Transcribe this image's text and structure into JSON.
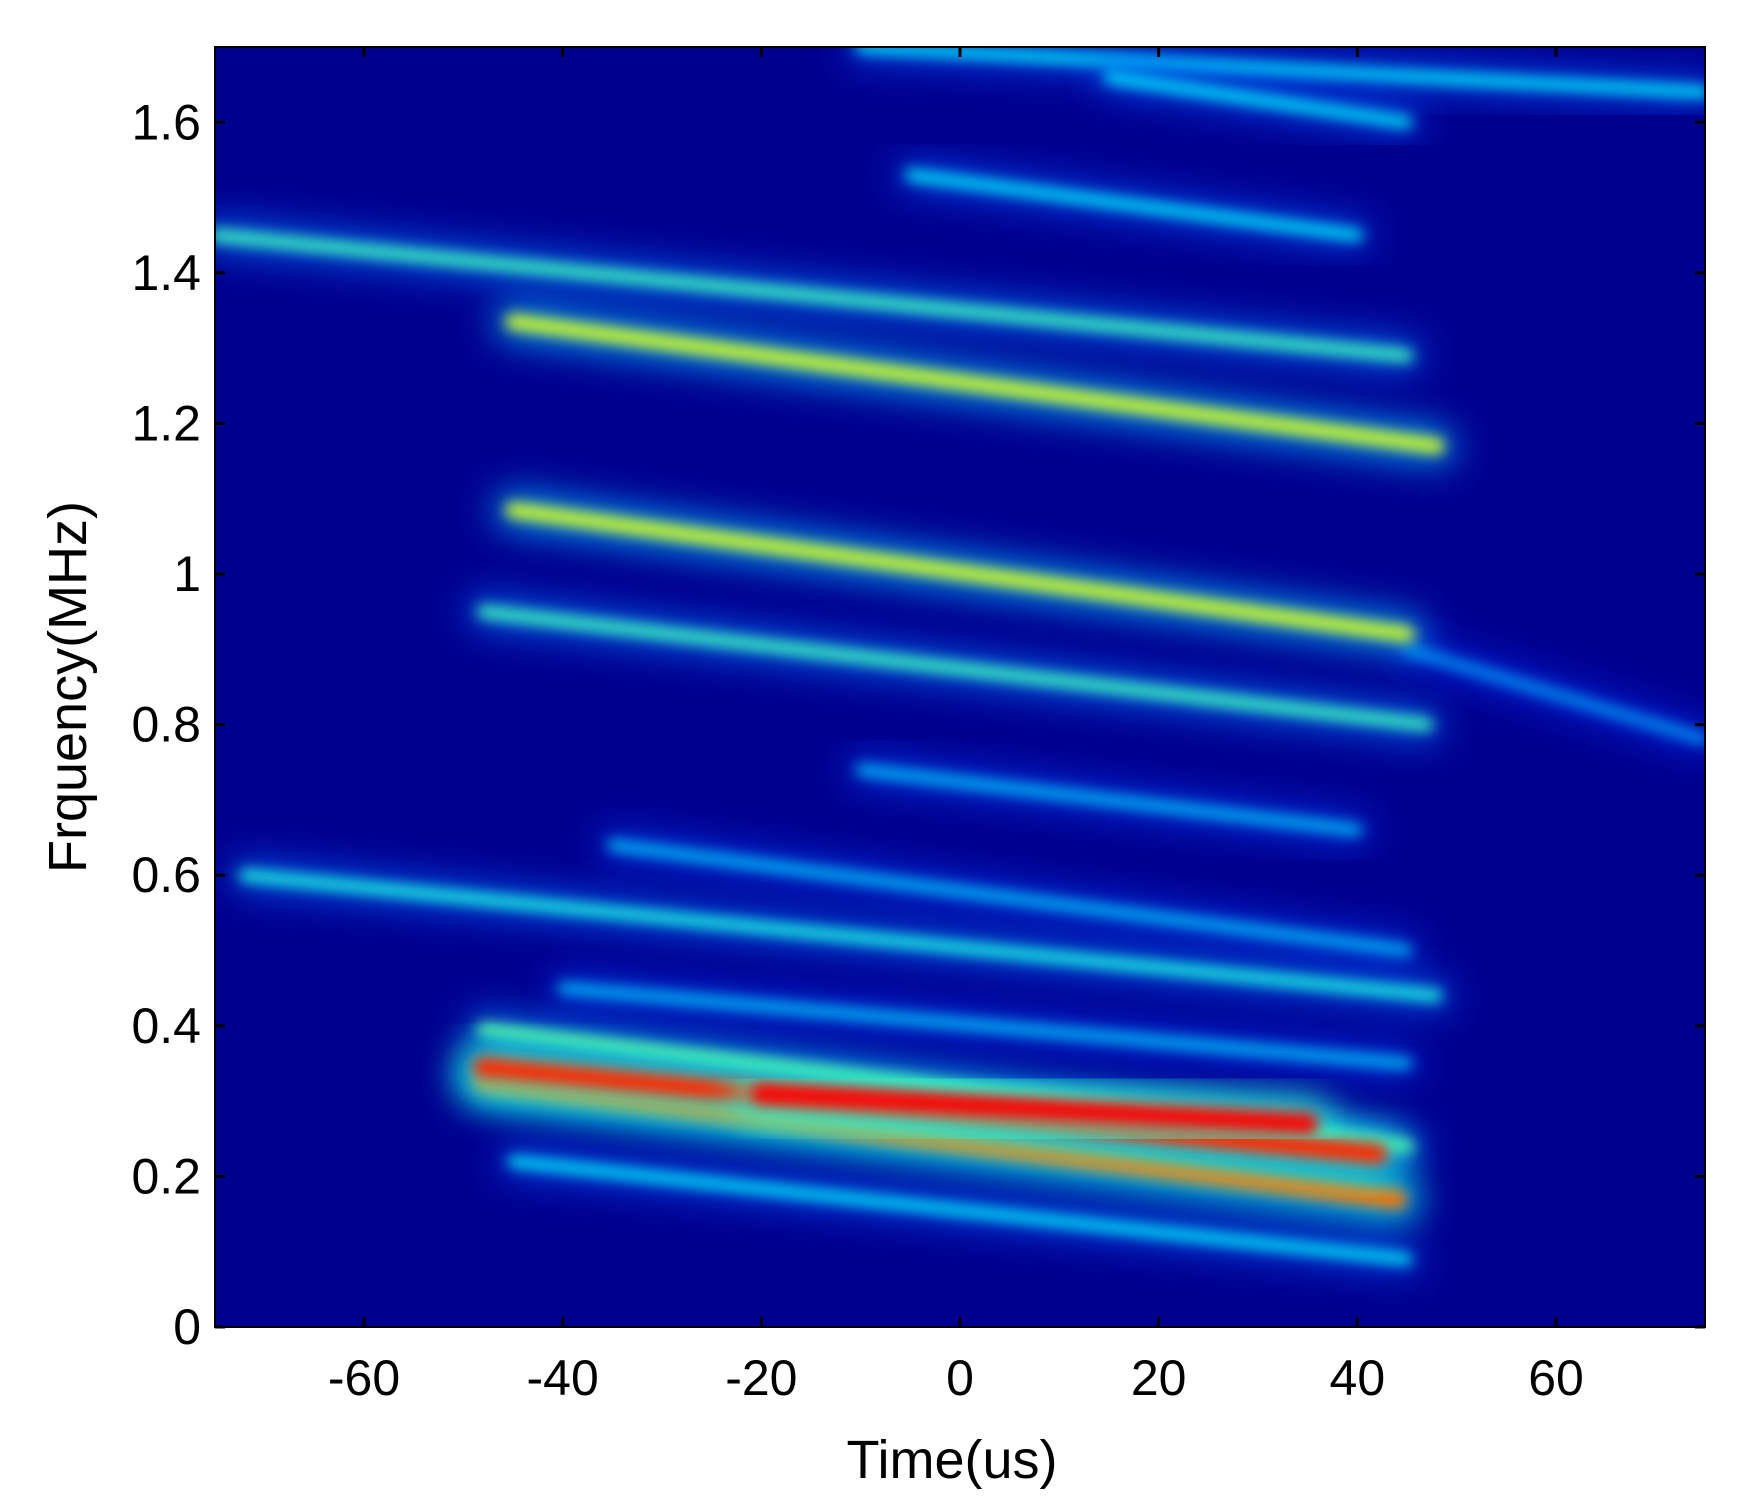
{
  "chart_data": {
    "type": "heatmap",
    "title": "",
    "xlabel": "Time(us)",
    "ylabel": "Frquency(MHz)",
    "xlim": [
      -75,
      75
    ],
    "ylim": [
      0,
      1.7
    ],
    "xticks": [
      -60,
      -40,
      -20,
      0,
      20,
      40,
      60
    ],
    "yticks": [
      0,
      0.2,
      0.4,
      0.6,
      0.8,
      1,
      1.2,
      1.4,
      1.6
    ],
    "xtick_labels": [
      "-60",
      "-40",
      "-20",
      "0",
      "20",
      "40",
      "60"
    ],
    "ytick_labels": [
      "0",
      "0.2",
      "0.4",
      "0.6",
      "0.8",
      "1",
      "1.2",
      "1.4",
      "1.6"
    ],
    "colormap": "jet",
    "background_color": "#00008f",
    "grid": false,
    "legend": "none",
    "features": [
      {
        "t_start": -48,
        "t_end": 42,
        "f_start": 0.345,
        "f_end": 0.23,
        "intensity": 0.95
      },
      {
        "t_start": -48,
        "t_end": 44,
        "f_start": 0.325,
        "f_end": 0.17,
        "intensity": 0.85
      },
      {
        "t_start": -20,
        "t_end": 35,
        "f_start": 0.31,
        "f_end": 0.27,
        "intensity": 1.0
      },
      {
        "t_start": -48,
        "t_end": 45,
        "f_start": 0.395,
        "f_end": 0.24,
        "intensity": 0.45
      },
      {
        "t_start": -45,
        "t_end": 45,
        "f_start": 0.22,
        "f_end": 0.09,
        "intensity": 0.3
      },
      {
        "t_start": -72,
        "t_end": 48,
        "f_start": 0.6,
        "f_end": 0.44,
        "intensity": 0.35
      },
      {
        "t_start": -40,
        "t_end": 45,
        "f_start": 0.45,
        "f_end": 0.35,
        "intensity": 0.25
      },
      {
        "t_start": -35,
        "t_end": 45,
        "f_start": 0.64,
        "f_end": 0.5,
        "intensity": 0.25
      },
      {
        "t_start": -10,
        "t_end": 40,
        "f_start": 0.74,
        "f_end": 0.66,
        "intensity": 0.25
      },
      {
        "t_start": -48,
        "t_end": 47,
        "f_start": 0.95,
        "f_end": 0.8,
        "intensity": 0.4
      },
      {
        "t_start": 45,
        "t_end": 75,
        "f_start": 0.9,
        "f_end": 0.78,
        "intensity": 0.2
      },
      {
        "t_start": -45,
        "t_end": 45,
        "f_start": 1.085,
        "f_end": 0.92,
        "intensity": 0.6
      },
      {
        "t_start": -45,
        "t_end": 48,
        "f_start": 1.335,
        "f_end": 1.17,
        "intensity": 0.6
      },
      {
        "t_start": -75,
        "t_end": 45,
        "f_start": 1.45,
        "f_end": 1.29,
        "intensity": 0.4
      },
      {
        "t_start": -5,
        "t_end": 40,
        "f_start": 1.53,
        "f_end": 1.45,
        "intensity": 0.3
      },
      {
        "t_start": -10,
        "t_end": 75,
        "f_start": 1.7,
        "f_end": 1.64,
        "intensity": 0.3
      },
      {
        "t_start": 15,
        "t_end": 45,
        "f_start": 1.66,
        "f_end": 1.6,
        "intensity": 0.3
      }
    ]
  }
}
